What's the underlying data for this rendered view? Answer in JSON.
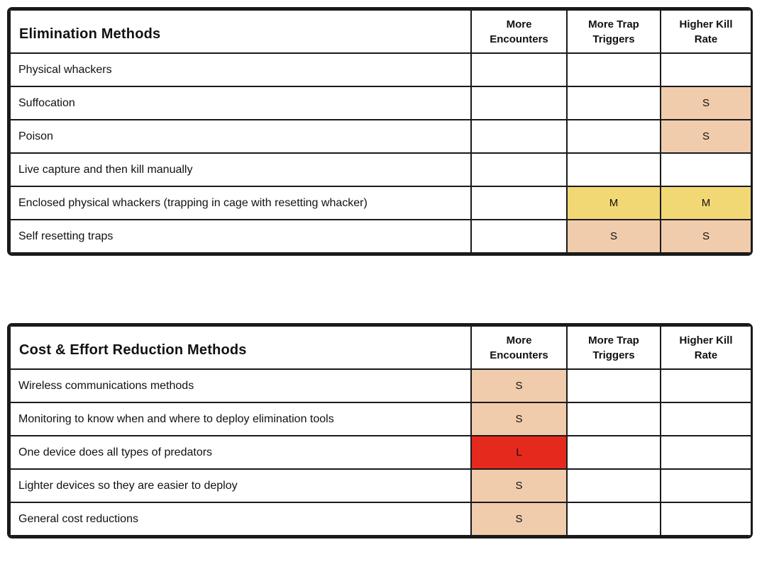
{
  "colors": {
    "S": "#F0CCAC",
    "M": "#F2D875",
    "L": "#E6291D",
    "border": "#1a1a1a"
  },
  "columns": [
    "More Encounters",
    "More Trap Triggers",
    "Higher Kill Rate"
  ],
  "tables": [
    {
      "title": "Elimination Methods",
      "rows": [
        {
          "label": "Physical whackers",
          "cells": [
            "",
            "",
            ""
          ]
        },
        {
          "label": "Suffocation",
          "cells": [
            "",
            "",
            "S"
          ]
        },
        {
          "label": "Poison",
          "cells": [
            "",
            "",
            "S"
          ]
        },
        {
          "label": "Live capture and then kill manually",
          "cells": [
            "",
            "",
            ""
          ]
        },
        {
          "label": "Enclosed physical whackers (trapping in cage with resetting whacker)",
          "cells": [
            "",
            "M",
            "M"
          ]
        },
        {
          "label": "Self resetting traps",
          "cells": [
            "",
            "S",
            "S"
          ]
        }
      ]
    },
    {
      "title": "Cost & Effort Reduction Methods",
      "rows": [
        {
          "label": "Wireless communications methods",
          "cells": [
            "S",
            "",
            ""
          ]
        },
        {
          "label": "Monitoring to know when and where to deploy elimination tools",
          "cells": [
            "S",
            "",
            ""
          ]
        },
        {
          "label": "One device does all types of predators",
          "cells": [
            "L",
            "",
            ""
          ]
        },
        {
          "label": "Lighter devices so they are easier to deploy",
          "cells": [
            "S",
            "",
            ""
          ]
        },
        {
          "label": "General cost reductions",
          "cells": [
            "S",
            "",
            ""
          ]
        }
      ]
    }
  ]
}
